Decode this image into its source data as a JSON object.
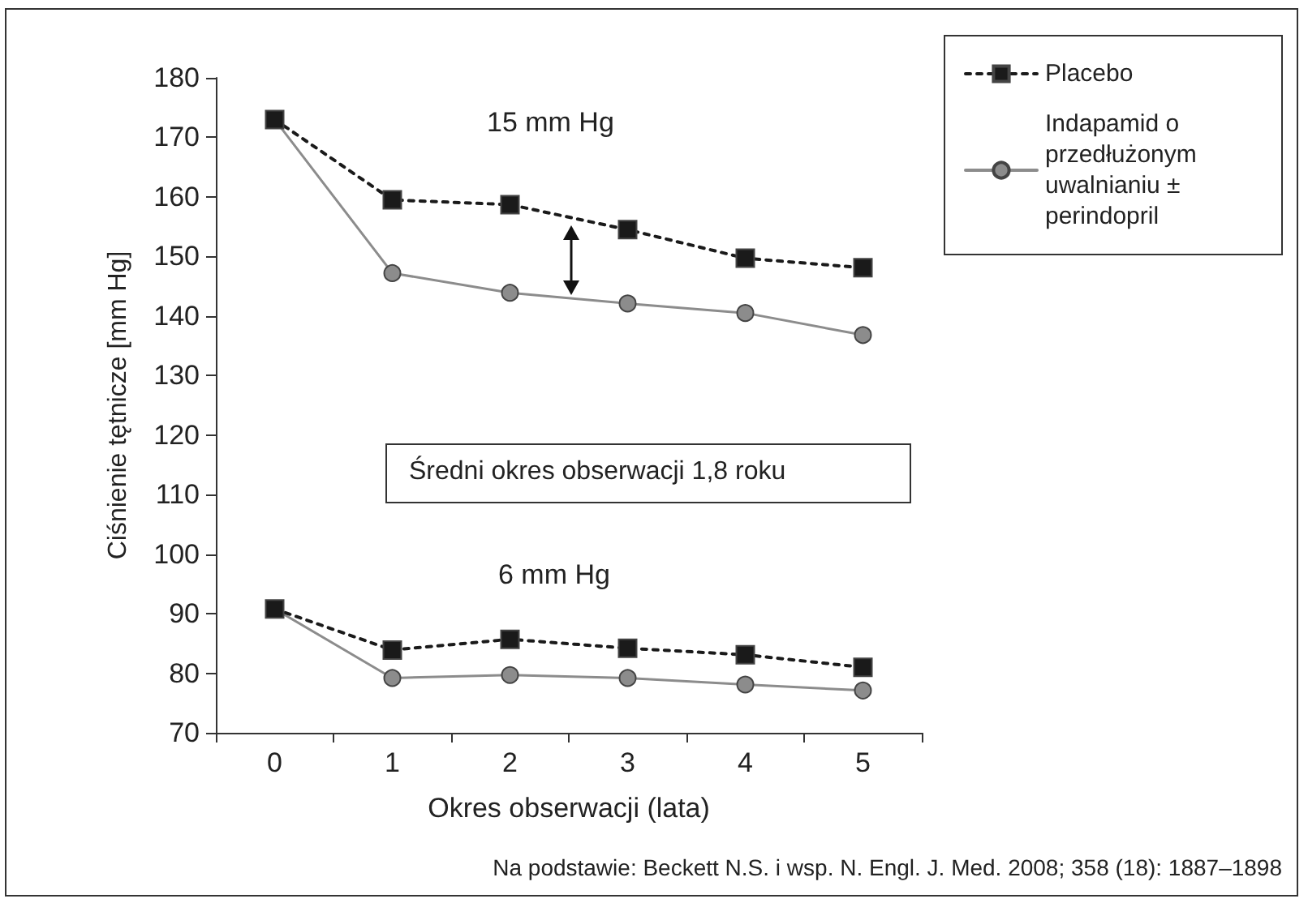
{
  "chart_data": {
    "type": "line",
    "categories": [
      "0",
      "1",
      "2",
      "3",
      "4",
      "5"
    ],
    "xlabel": "Okres obserwacji (lata)",
    "ylabel": "Ciśnienie tętnicze [mm Hg]",
    "ylim": [
      70,
      180
    ],
    "yticks": [
      70,
      80,
      90,
      100,
      110,
      120,
      130,
      140,
      150,
      160,
      170,
      180
    ],
    "series": [
      {
        "name": "Placebo",
        "color": "#1a1a1a",
        "marker": "square",
        "line_style": "dotted",
        "values": [
          173,
          159.5,
          158.7,
          154.5,
          149.7,
          148.1
        ]
      },
      {
        "name": "Indapamid o przedłużonym uwalnianiu ± perindopril",
        "color": "#8c8c8c",
        "marker": "circle",
        "line_style": "solid",
        "values": [
          173,
          147.2,
          143.9,
          142.1,
          140.5,
          136.8
        ]
      },
      {
        "color": "#1a1a1a",
        "marker": "square",
        "line_style": "dotted",
        "values": [
          90.8,
          83.9,
          85.7,
          84.2,
          83.1,
          81.0
        ]
      },
      {
        "color": "#8c8c8c",
        "marker": "circle",
        "line_style": "solid",
        "values": [
          90.8,
          79.2,
          79.7,
          79.2,
          78.1,
          77.1
        ]
      }
    ],
    "annotations": [
      "15 mm Hg",
      "6 mm Hg",
      "Średni okres obserwacji 1,8 roku",
      "Na podstawie: Beckett N.S. i wsp. N. Engl. J. Med. 2008; 358 (18): 1887–1898"
    ],
    "legend": "top right",
    "grid": false
  }
}
